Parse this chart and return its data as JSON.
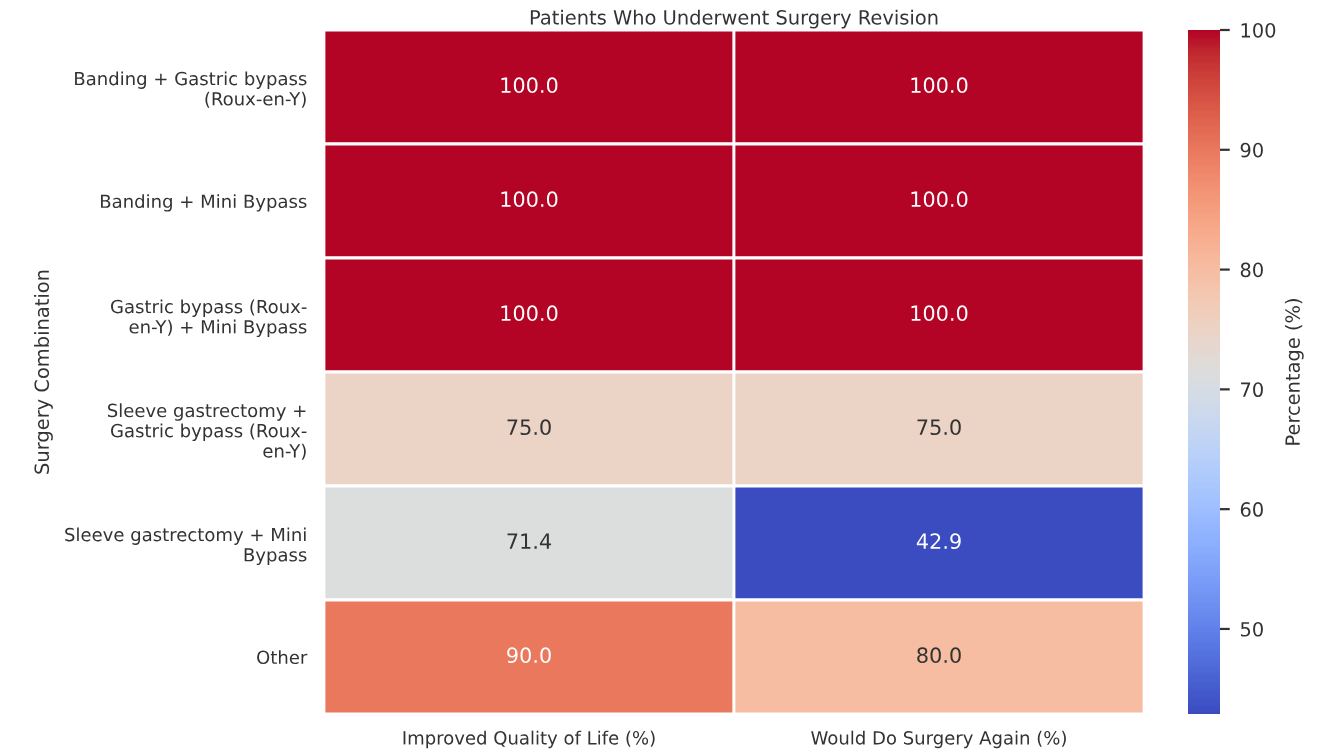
{
  "chart_data": {
    "type": "heatmap",
    "title": "Patients Who Underwent Surgery Revision",
    "ylabel": "Surgery Combination",
    "clabel": "Percentage (%)",
    "categories": [
      "Improved Quality of Life (%)",
      "Would Do Surgery Again (%)"
    ],
    "y_categories": [
      "Banding + Gastric bypass\n(Roux-en-Y)",
      "Banding + Mini Bypass",
      "Gastric bypass (Roux-\nen-Y) + Mini Bypass",
      "Sleeve gastrectomy +\nGastric bypass (Roux-\nen-Y)",
      "Sleeve gastrectomy + Mini\nBypass",
      "Other"
    ],
    "cells": [
      [
        100.0,
        100.0
      ],
      [
        100.0,
        100.0
      ],
      [
        100.0,
        100.0
      ],
      [
        75.0,
        75.0
      ],
      [
        71.4,
        42.9
      ],
      [
        90.0,
        80.0
      ]
    ],
    "cell_labels": [
      [
        "100.0",
        "100.0"
      ],
      [
        "100.0",
        "100.0"
      ],
      [
        "100.0",
        "100.0"
      ],
      [
        "75.0",
        "75.0"
      ],
      [
        "71.4",
        "42.9"
      ],
      [
        "90.0",
        "80.0"
      ]
    ],
    "clim": [
      42.9,
      100
    ],
    "cticks": [
      50,
      60,
      70,
      80,
      90,
      100
    ]
  }
}
